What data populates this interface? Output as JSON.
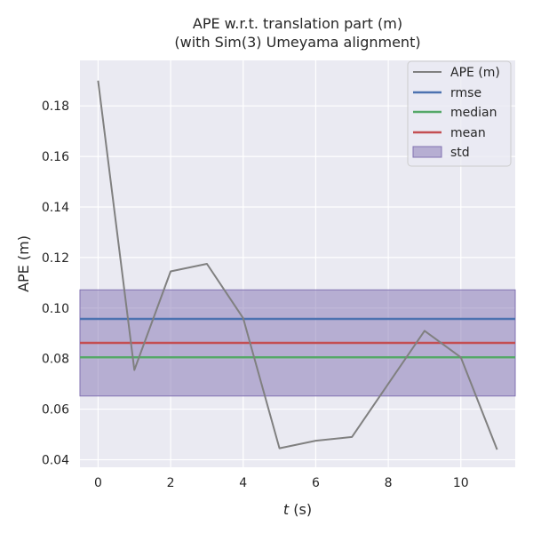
{
  "chart_data": {
    "type": "line",
    "title_line1": "APE w.r.t. translation part (m)",
    "title_line2": "(with Sim(3) Umeyama alignment)",
    "xlabel_italic": "t",
    "xlabel_rest": " (s)",
    "ylabel": "APE (m)",
    "xlim": [
      -0.5,
      11.5
    ],
    "ylim": [
      0.037,
      0.198
    ],
    "xticks": [
      0,
      2,
      4,
      6,
      8,
      10
    ],
    "yticks": [
      0.04,
      0.06,
      0.08,
      0.1,
      0.12,
      0.14,
      0.16,
      0.18
    ],
    "ytick_labels": [
      "0.04",
      "0.06",
      "0.08",
      "0.10",
      "0.12",
      "0.14",
      "0.16",
      "0.18"
    ],
    "grid": true,
    "legend_position": "top-right",
    "series": [
      {
        "name": "APE (m)",
        "color": "#808080",
        "x": [
          0,
          1,
          2,
          3,
          4,
          5,
          6,
          7,
          8,
          9,
          10,
          11
        ],
        "values": [
          0.19,
          0.0755,
          0.1145,
          0.1175,
          0.096,
          0.0445,
          0.0475,
          0.049,
          0.07,
          0.091,
          0.0805,
          0.044
        ]
      }
    ],
    "stats": {
      "rmse": {
        "name": "rmse",
        "value": 0.0957,
        "color": "#4c72b0"
      },
      "median": {
        "name": "median",
        "value": 0.0805,
        "color": "#55a868"
      },
      "mean": {
        "name": "mean",
        "value": 0.0862,
        "color": "#c44e52"
      },
      "std": {
        "name": "std",
        "low": 0.0652,
        "high": 0.1072,
        "color": "#8172b2"
      }
    },
    "legend": [
      "APE (m)",
      "rmse",
      "median",
      "mean",
      "std"
    ],
    "colors": {
      "plot_background": "#eaeaf2",
      "grid": "#ffffff",
      "text": "#262626"
    }
  }
}
